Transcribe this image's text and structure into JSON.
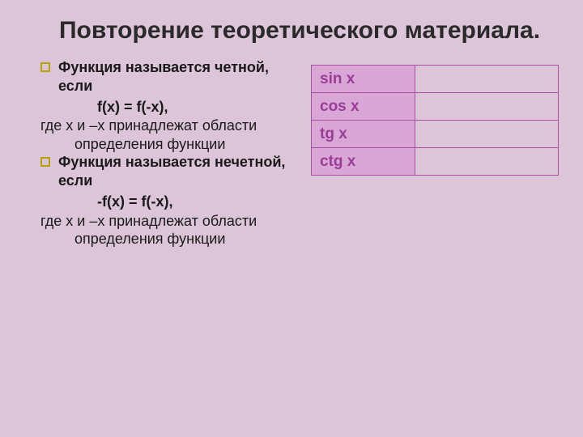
{
  "colors": {
    "slide_bg": "#dcc5d9",
    "title_color": "#2a2a2a",
    "text_color": "#1a1a1a",
    "bullet_border": "#b8a400",
    "table_border": "#a64fa3",
    "table_header_bg": "#d9a7d6",
    "table_text": "#9a3c97",
    "table_blank_bg": "#dcc5d9"
  },
  "fonts": {
    "title_size": 30,
    "body_size": 18,
    "table_size": 19
  },
  "title": "Повторение теоретического материала.",
  "left": {
    "b1_text": "Функция называется четной, если",
    "f1": "f(x) = f(-x),",
    "p1": "где х и –х принадлежат области определения функции",
    "b2_text": "Функция называется нечетной, если",
    "f2": "-f(x) = f(-x),",
    "p2": "где х и –х принадлежат области определения функции"
  },
  "table": {
    "rows": [
      {
        "func": "sin x",
        "val": ""
      },
      {
        "func": "cos x",
        "val": ""
      },
      {
        "func": "tg x",
        "val": ""
      },
      {
        "func": "ctg x",
        "val": ""
      }
    ]
  }
}
